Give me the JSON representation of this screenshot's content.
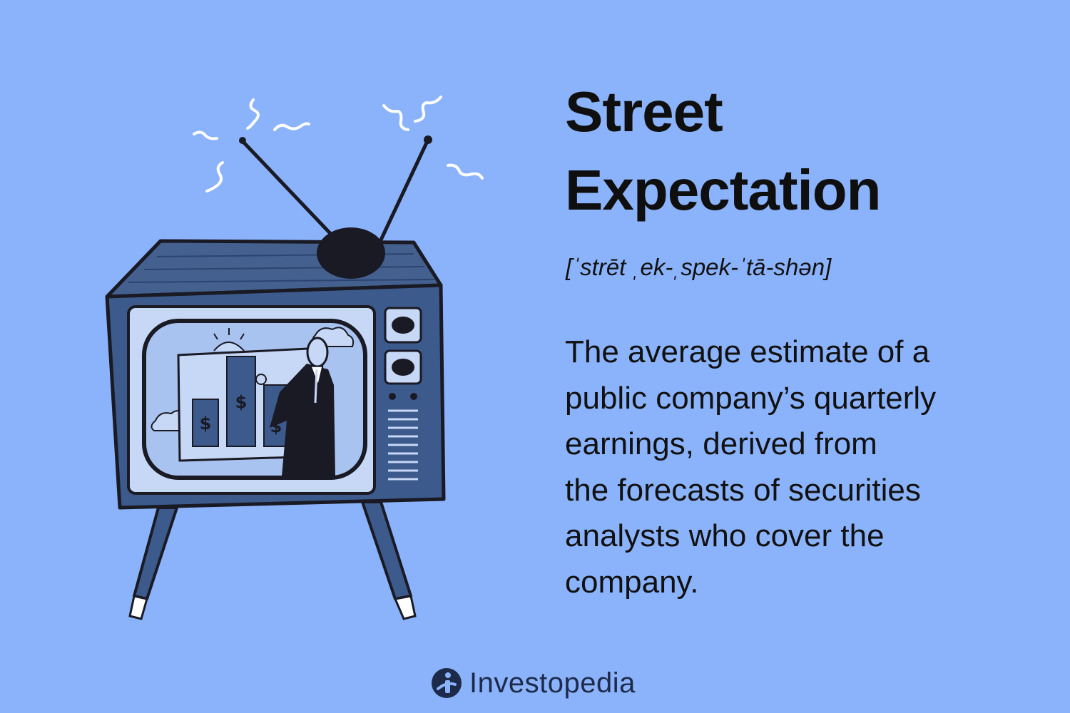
{
  "term": {
    "title_line1": "Street",
    "title_line2": "Expectation",
    "pronunciation": "[ˈstrēt ˌek-ˌspek-ˈtā-shən]",
    "definition_lines": [
      "The average estimate of a",
      "public company’s quarterly",
      "earnings, derived from",
      "the forecasts of securities",
      "analysts who cover the",
      "company."
    ]
  },
  "illustration": {
    "subject": "vintage-tv-with-analyst-presenting-bar-chart",
    "chart_symbols": [
      "$",
      "$",
      "$"
    ]
  },
  "brand": {
    "name": "Investopedia",
    "logo_icon": "investopedia-logo-icon"
  },
  "colors": {
    "background": "#8bb3fb",
    "text": "#111111",
    "tv_body": "#3c5a8c",
    "tv_dark": "#1a1a24",
    "screen": "#a9c3f0",
    "brand_text": "#1e2a4a"
  }
}
